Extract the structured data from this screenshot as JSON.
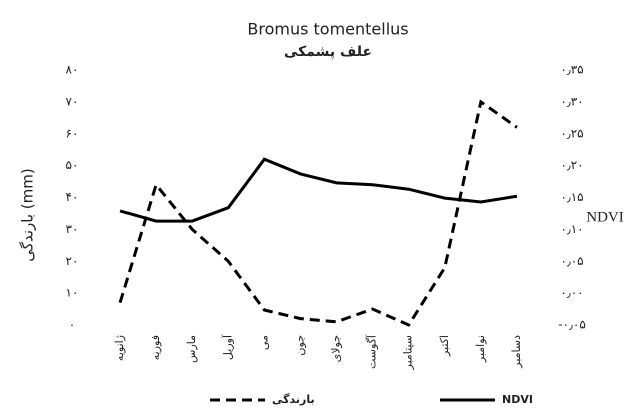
{
  "chart_data": {
    "type": "line",
    "title": "Bromus tomentellus",
    "subtitle": "علف پشمکی",
    "y_label": "بارندگی (mm)",
    "y2_label": "NDVI",
    "categories": [
      "ژانویه",
      "فوریه",
      "مارس",
      "آوریل",
      "می",
      "جون",
      "جولای",
      "آگوست",
      "سپتامبر",
      "اکتبر",
      "نوامبر",
      "دسامبر"
    ],
    "series": [
      {
        "name": "بارندگی",
        "color": "#000000",
        "dash": true,
        "axis": "y",
        "values": [
          7,
          44,
          30,
          20,
          4.7,
          2,
          1,
          5,
          0,
          18,
          70,
          62
        ]
      },
      {
        "name": "NDVI",
        "color": "#000000",
        "dash": false,
        "axis": "y2",
        "values": [
          0.129,
          0.113,
          0.113,
          0.134,
          0.21,
          0.187,
          0.173,
          0.17,
          0.163,
          0.149,
          0.143,
          0.152
        ]
      }
    ],
    "ylim": [
      0,
      80
    ],
    "yticks": [
      {
        "value": 0,
        "label": "۰"
      },
      {
        "value": 10,
        "label": "۱۰"
      },
      {
        "value": 20,
        "label": "۲۰"
      },
      {
        "value": 30,
        "label": "۳۰"
      },
      {
        "value": 40,
        "label": "۴۰"
      },
      {
        "value": 50,
        "label": "۵۰"
      },
      {
        "value": 60,
        "label": "۶۰"
      },
      {
        "value": 70,
        "label": "۷۰"
      },
      {
        "value": 80,
        "label": "۸۰"
      }
    ],
    "y2lim": [
      -0.05,
      0.35
    ],
    "y2ticks": [
      {
        "value": -0.05,
        "label": "-۰٫۰۵"
      },
      {
        "value": 0,
        "label": "۰٫۰۰"
      },
      {
        "value": 0.05,
        "label": "۰٫۰۵"
      },
      {
        "value": 0.1,
        "label": "۰٫۱۰"
      },
      {
        "value": 0.15,
        "label": "۰٫۱۵"
      },
      {
        "value": 0.2,
        "label": "۰٫۲۰"
      },
      {
        "value": 0.25,
        "label": "۰٫۲۵"
      },
      {
        "value": 0.3,
        "label": "۰٫۳۰"
      },
      {
        "value": 0.35,
        "label": "۰٫۳۵"
      }
    ],
    "grid": false
  }
}
